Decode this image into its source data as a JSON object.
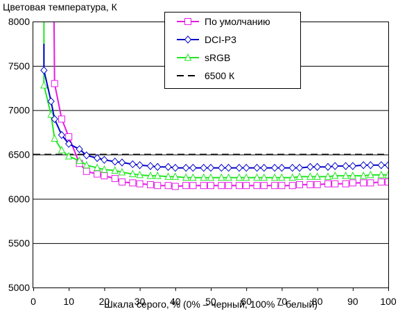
{
  "chart_data": {
    "type": "line",
    "title": "Цветовая температура, К",
    "xlabel": "Шкала серого, % (0% – черный, 100% – белый)",
    "ylabel": "",
    "xlim": [
      0,
      100
    ],
    "ylim": [
      5000,
      8000
    ],
    "xticks": [
      0,
      10,
      20,
      30,
      40,
      50,
      60,
      70,
      80,
      90,
      100
    ],
    "yticks": [
      5000,
      5500,
      6000,
      6500,
      7000,
      7500,
      8000
    ],
    "grid": "horizontal",
    "legend_position": "top-right",
    "x": [
      3,
      5,
      6,
      8,
      10,
      13,
      15,
      18,
      20,
      23,
      25,
      28,
      30,
      33,
      35,
      38,
      40,
      43,
      45,
      48,
      50,
      53,
      55,
      58,
      60,
      63,
      65,
      68,
      70,
      73,
      75,
      78,
      80,
      83,
      85,
      88,
      90,
      93,
      95,
      98,
      100
    ],
    "series": [
      {
        "name": "По умолчанию",
        "color": "#e619e6",
        "marker": "square",
        "x": [
          6,
          8,
          10,
          13,
          15,
          18,
          20,
          23,
          25,
          28,
          30,
          33,
          35,
          38,
          40,
          43,
          45,
          48,
          50,
          53,
          55,
          58,
          60,
          63,
          65,
          68,
          70,
          73,
          75,
          78,
          80,
          83,
          85,
          88,
          90,
          93,
          95,
          98,
          100
        ],
        "values": [
          7300,
          6900,
          6700,
          6400,
          6310,
          6280,
          6260,
          6230,
          6190,
          6180,
          6170,
          6160,
          6150,
          6150,
          6140,
          6150,
          6150,
          6150,
          6150,
          6150,
          6150,
          6150,
          6150,
          6150,
          6150,
          6150,
          6150,
          6150,
          6160,
          6160,
          6160,
          6170,
          6170,
          6170,
          6180,
          6180,
          6180,
          6190,
          6190
        ]
      },
      {
        "name": "DCI-P3",
        "color": "#0000cc",
        "marker": "diamond",
        "x": [
          3,
          5,
          6,
          8,
          10,
          13,
          15,
          18,
          20,
          23,
          25,
          28,
          30,
          33,
          35,
          38,
          40,
          43,
          45,
          48,
          50,
          53,
          55,
          58,
          60,
          63,
          65,
          68,
          70,
          73,
          75,
          78,
          80,
          83,
          85,
          88,
          90,
          93,
          95,
          98,
          100
        ],
        "values": [
          7450,
          7100,
          6900,
          6720,
          6620,
          6560,
          6490,
          6460,
          6440,
          6420,
          6410,
          6390,
          6380,
          6370,
          6360,
          6360,
          6350,
          6350,
          6350,
          6350,
          6350,
          6350,
          6350,
          6350,
          6350,
          6350,
          6350,
          6350,
          6350,
          6350,
          6350,
          6360,
          6360,
          6360,
          6370,
          6370,
          6370,
          6380,
          6380,
          6380,
          6380
        ]
      },
      {
        "name": "sRGB",
        "color": "#22e622",
        "marker": "triangle",
        "x": [
          3,
          5,
          6,
          8,
          10,
          13,
          15,
          18,
          20,
          23,
          25,
          28,
          30,
          33,
          35,
          38,
          40,
          43,
          45,
          48,
          50,
          53,
          55,
          58,
          60,
          63,
          65,
          68,
          70,
          73,
          75,
          78,
          80,
          83,
          85,
          88,
          90,
          93,
          95,
          98,
          100
        ],
        "values": [
          7280,
          6950,
          6680,
          6550,
          6480,
          6430,
          6380,
          6350,
          6330,
          6320,
          6300,
          6280,
          6270,
          6260,
          6260,
          6250,
          6250,
          6240,
          6240,
          6240,
          6240,
          6240,
          6240,
          6240,
          6240,
          6240,
          6240,
          6240,
          6240,
          6240,
          6250,
          6250,
          6250,
          6250,
          6260,
          6260,
          6260,
          6260,
          6270,
          6270,
          6270
        ]
      },
      {
        "name": "6500 К",
        "color": "#000000",
        "marker": "none",
        "dashed": true,
        "x": [
          0,
          100
        ],
        "values": [
          6500,
          6500
        ]
      }
    ]
  }
}
